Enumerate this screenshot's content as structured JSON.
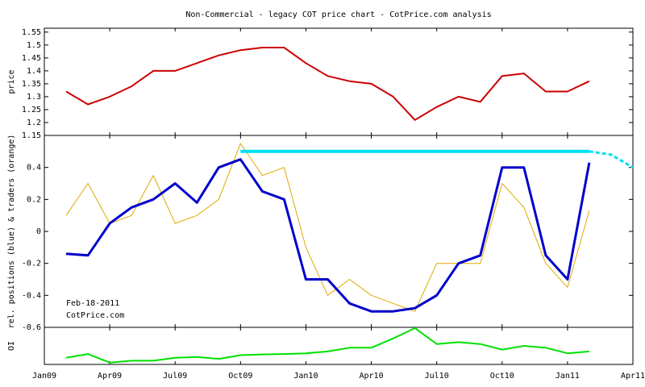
{
  "title": "Non-Commercial - legacy COT price chart - CotPrice.com analysis",
  "chart_data": [
    {
      "type": "line",
      "ylabel": "price",
      "xlim": [
        "2009-01",
        "2011-04"
      ],
      "ylim": [
        1.15,
        1.565
      ],
      "yticks": [
        1.15,
        1.2,
        1.25,
        1.3,
        1.35,
        1.4,
        1.45,
        1.5,
        1.55
      ],
      "x": [
        "2009-02",
        "2009-03",
        "2009-04",
        "2009-05",
        "2009-06",
        "2009-07",
        "2009-08",
        "2009-09",
        "2009-10",
        "2009-11",
        "2009-12",
        "2010-01",
        "2010-02",
        "2010-03",
        "2010-04",
        "2010-05",
        "2010-06",
        "2010-07",
        "2010-08",
        "2010-09",
        "2010-10",
        "2010-11",
        "2010-12",
        "2011-01",
        "2011-02"
      ],
      "series": [
        {
          "color": "#cc0000",
          "width": 2,
          "values": [
            1.32,
            1.27,
            1.3,
            1.34,
            1.4,
            1.4,
            1.43,
            1.46,
            1.48,
            1.49,
            1.49,
            1.43,
            1.38,
            1.36,
            1.35,
            1.3,
            1.21,
            1.26,
            1.3,
            1.28,
            1.38,
            1.39,
            1.32,
            1.32,
            1.36
          ]
        }
      ]
    },
    {
      "type": "line",
      "ylabel": "rel. positions (blue) & traders (orange)",
      "xlim": [
        "2009-01",
        "2011-04"
      ],
      "ylim": [
        -0.6,
        0.6
      ],
      "yticks": [
        -0.6,
        -0.4,
        -0.2,
        0,
        0.2,
        0.4
      ],
      "annotations": [
        "Feb-18-2011",
        "CotPrice.com"
      ],
      "x": [
        "2009-02",
        "2009-03",
        "2009-04",
        "2009-05",
        "2009-06",
        "2009-07",
        "2009-08",
        "2009-09",
        "2009-10",
        "2009-11",
        "2009-12",
        "2010-01",
        "2010-02",
        "2010-03",
        "2010-04",
        "2010-05",
        "2010-06",
        "2010-07",
        "2010-08",
        "2010-09",
        "2010-10",
        "2010-11",
        "2010-12",
        "2011-01",
        "2011-02"
      ],
      "series": [
        {
          "color": "#e0a800",
          "width": 1,
          "values": [
            0.1,
            0.3,
            0.05,
            0.1,
            0.35,
            0.05,
            0.1,
            0.2,
            0.55,
            0.35,
            0.4,
            -0.1,
            -0.4,
            -0.3,
            -0.4,
            -0.45,
            -0.5,
            -0.2,
            -0.2,
            -0.2,
            0.3,
            0.15,
            -0.2,
            -0.35,
            0.13
          ]
        },
        {
          "color": "#0000cc",
          "width": 3,
          "values": [
            -0.14,
            -0.15,
            0.05,
            0.15,
            0.2,
            0.3,
            0.18,
            0.4,
            0.45,
            0.25,
            0.2,
            -0.3,
            -0.3,
            -0.45,
            -0.5,
            -0.5,
            -0.48,
            -0.4,
            -0.2,
            -0.15,
            0.4,
            0.4,
            -0.15,
            -0.3,
            0.43
          ]
        },
        {
          "color": "#00e0f0",
          "width": 4,
          "x": [
            "2009-10",
            "2011-02"
          ],
          "values": [
            0.5,
            0.5
          ]
        },
        {
          "color": "#00e0f0",
          "width": 3,
          "dashed": true,
          "x": [
            "2011-02",
            "2011-03",
            "2011-04"
          ],
          "values": [
            0.5,
            0.48,
            0.4
          ]
        }
      ]
    },
    {
      "type": "line",
      "ylabel": "OI",
      "xlim": [
        "2009-01",
        "2011-04"
      ],
      "ylim": [
        0,
        1
      ],
      "xticks": [
        {
          "value": "2009-01",
          "label": "Jan09"
        },
        {
          "value": "2009-04",
          "label": "Apr09"
        },
        {
          "value": "2009-07",
          "label": "Jul09"
        },
        {
          "value": "2009-10",
          "label": "Oct09"
        },
        {
          "value": "2010-01",
          "label": "Jan10"
        },
        {
          "value": "2010-04",
          "label": "Apr10"
        },
        {
          "value": "2010-07",
          "label": "Jul10"
        },
        {
          "value": "2010-10",
          "label": "Oct10"
        },
        {
          "value": "2011-01",
          "label": "Jan11"
        },
        {
          "value": "2011-04",
          "label": "Apr11"
        }
      ],
      "x": [
        "2009-02",
        "2009-03",
        "2009-04",
        "2009-05",
        "2009-06",
        "2009-07",
        "2009-08",
        "2009-09",
        "2009-10",
        "2009-11",
        "2009-12",
        "2010-01",
        "2010-02",
        "2010-03",
        "2010-04",
        "2010-05",
        "2010-06",
        "2010-07",
        "2010-08",
        "2010-09",
        "2010-10",
        "2010-11",
        "2010-12",
        "2011-01",
        "2011-02"
      ],
      "series": [
        {
          "color": "#00e000",
          "width": 2,
          "values": [
            0.18,
            0.28,
            0.05,
            0.1,
            0.1,
            0.18,
            0.2,
            0.15,
            0.25,
            0.27,
            0.28,
            0.3,
            0.35,
            0.45,
            0.45,
            0.7,
            0.98,
            0.55,
            0.6,
            0.55,
            0.4,
            0.5,
            0.45,
            0.3,
            0.35
          ]
        }
      ]
    }
  ]
}
